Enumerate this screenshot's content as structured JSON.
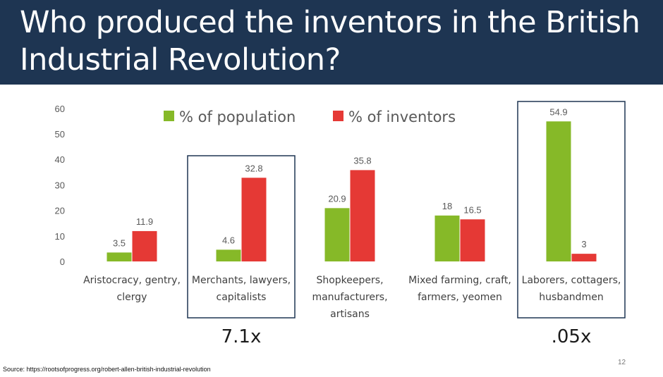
{
  "slide": {
    "title": "Who produced the inventors in the British Industrial Revolution?",
    "source": "Source: https://rootsofprogress.org/robert-allen-british-industrial-revolution",
    "page_number": "12"
  },
  "colors": {
    "header_bg": "#1e3552",
    "population": "#86b928",
    "inventors": "#e53935",
    "highlight_box": "#1e3552"
  },
  "chart_data": {
    "type": "bar",
    "categories": [
      [
        "Aristocracy, gentry,",
        "clergy"
      ],
      [
        "Merchants, lawyers,",
        "capitalists"
      ],
      [
        "Shopkeepers,",
        "manufacturers,",
        "artisans"
      ],
      [
        "Mixed farming, craft,",
        "farmers, yeomen"
      ],
      [
        "Laborers, cottagers,",
        "husbandmen"
      ]
    ],
    "series": [
      {
        "name": "% of population",
        "values": [
          3.5,
          4.6,
          20.9,
          18,
          54.9
        ]
      },
      {
        "name": "% of inventors",
        "values": [
          11.9,
          32.8,
          35.8,
          16.5,
          3
        ]
      }
    ],
    "data_labels": [
      [
        "3.5",
        "4.6",
        "20.9",
        "18",
        "54.9"
      ],
      [
        "11.9",
        "32.8",
        "35.8",
        "16.5",
        "3"
      ]
    ],
    "yticks": [
      0,
      10,
      20,
      30,
      40,
      50,
      60
    ],
    "ylim": [
      0,
      60
    ],
    "legend_position": "top",
    "grid": false,
    "highlights": [
      {
        "category_index": 1,
        "label": "7.1x"
      },
      {
        "category_index": 4,
        "label": ".05x"
      }
    ]
  }
}
